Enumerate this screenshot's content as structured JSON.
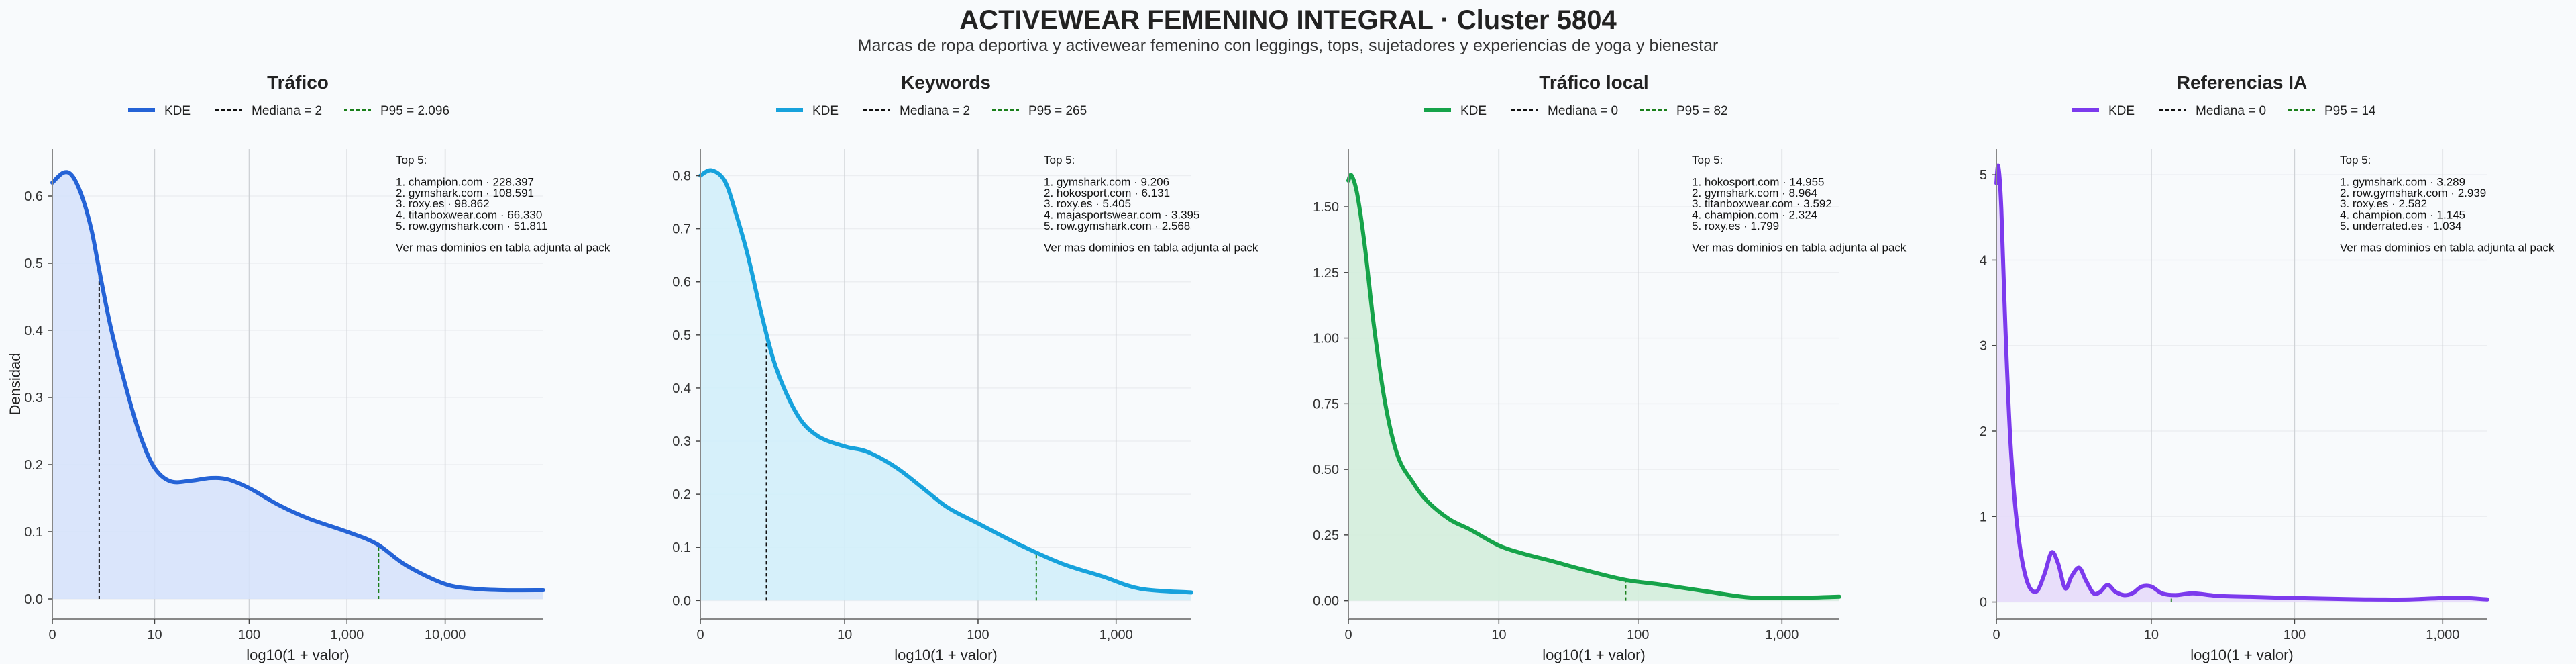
{
  "title": "ACTIVEWEAR FEMENINO INTEGRAL · Cluster 5804",
  "subtitle": "Marcas de ropa deportiva y activewear femenino con leggings, tops, sujetadores y experiencias de yoga y bienestar",
  "chart_data": [
    {
      "type": "area",
      "title": "Tráfico",
      "color": "#2563d6",
      "fill": "#d6e2fb",
      "xlabel": "log10(1 + valor)",
      "ylabel": "Densidad",
      "x_scale": "log1p",
      "xlim": [
        0,
        100000
      ],
      "ylim": [
        -0.03,
        0.67
      ],
      "xticks": [
        0,
        10,
        100,
        1000,
        10000
      ],
      "xtick_labels": [
        "0",
        "10",
        "100",
        "1,000",
        "10,000"
      ],
      "yticks": [
        0,
        0.1,
        0.2,
        0.3,
        0.4,
        0.5,
        0.6
      ],
      "ytick_labels": [
        "0.0",
        "0.1",
        "0.2",
        "0.3",
        "0.4",
        "0.5",
        "0.6"
      ],
      "legend": {
        "kde": "KDE",
        "median": "Mediana = 2",
        "p95": "P95 = 2.096"
      },
      "median": 2,
      "p95": 2096,
      "annotation": [
        "Top 5:",
        "",
        "1. champion.com · 228.397",
        "2. gymshark.com · 108.591",
        "3. roxy.es · 98.862",
        "4. titanboxwear.com · 66.330",
        "5. row.gymshark.com · 51.811",
        "",
        "Ver mas dominios en tabla adjunta al pack"
      ],
      "x": [
        0,
        0.3,
        0.6,
        1,
        1.5,
        2,
        3,
        5,
        7,
        10,
        15,
        25,
        40,
        60,
        100,
        200,
        400,
        1000,
        2000,
        4000,
        10000,
        20000,
        40000,
        100000
      ],
      "y": [
        0.62,
        0.635,
        0.63,
        0.6,
        0.55,
        0.49,
        0.4,
        0.3,
        0.24,
        0.195,
        0.175,
        0.176,
        0.18,
        0.178,
        0.165,
        0.14,
        0.12,
        0.1,
        0.082,
        0.05,
        0.022,
        0.015,
        0.013,
        0.013
      ]
    },
    {
      "type": "area",
      "title": "Keywords",
      "color": "#17a2dc",
      "fill": "#d2eefa",
      "xlabel": "log10(1 + valor)",
      "ylabel": "",
      "x_scale": "log1p",
      "xlim": [
        0,
        3500
      ],
      "ylim": [
        -0.035,
        0.85
      ],
      "xticks": [
        0,
        10,
        100,
        1000
      ],
      "xtick_labels": [
        "0",
        "10",
        "100",
        "1,000"
      ],
      "yticks": [
        0,
        0.1,
        0.2,
        0.3,
        0.4,
        0.5,
        0.6,
        0.7,
        0.8
      ],
      "ytick_labels": [
        "0.0",
        "0.1",
        "0.2",
        "0.3",
        "0.4",
        "0.5",
        "0.6",
        "0.7",
        "0.8"
      ],
      "legend": {
        "kde": "KDE",
        "median": "Mediana = 2",
        "p95": "P95 = 265"
      },
      "median": 2,
      "p95": 265,
      "annotation": [
        "Top 5:",
        "",
        "1. gymshark.com · 9.206",
        "2. hokosport.com · 6.131",
        "3. roxy.es · 5.405",
        "4. majasportswear.com · 3.395",
        "5. row.gymshark.com · 2.568",
        "",
        "Ver mas dominios en tabla adjunta al pack"
      ],
      "x": [
        0,
        0.2,
        0.5,
        0.8,
        1.2,
        1.7,
        2.5,
        4,
        6,
        10,
        15,
        25,
        40,
        60,
        100,
        200,
        400,
        800,
        1500,
        3500
      ],
      "y": [
        0.8,
        0.81,
        0.79,
        0.73,
        0.65,
        0.55,
        0.44,
        0.35,
        0.31,
        0.29,
        0.28,
        0.25,
        0.21,
        0.175,
        0.145,
        0.105,
        0.07,
        0.045,
        0.022,
        0.015
      ]
    },
    {
      "type": "area",
      "title": "Tráfico local",
      "color": "#16a34a",
      "fill": "#d3eddb",
      "xlabel": "log10(1 + valor)",
      "ylabel": "",
      "x_scale": "log1p",
      "xlim": [
        0,
        2500
      ],
      "ylim": [
        -0.07,
        1.72
      ],
      "xticks": [
        0,
        10,
        100,
        1000
      ],
      "xtick_labels": [
        "0",
        "10",
        "100",
        "1,000"
      ],
      "yticks": [
        0,
        0.25,
        0.5,
        0.75,
        1.0,
        1.25,
        1.5
      ],
      "ytick_labels": [
        "0.00",
        "0.25",
        "0.50",
        "0.75",
        "1.00",
        "1.25",
        "1.50"
      ],
      "legend": {
        "kde": "KDE",
        "median": "Mediana = 0",
        "p95": "P95 = 82"
      },
      "median": 0,
      "p95": 82,
      "annotation": [
        "Top 5:",
        "",
        "1. hokosport.com · 14.955",
        "2. gymshark.com · 8.964",
        "3. titanboxwear.com · 3.592",
        "4. champion.com · 2.324",
        "5. roxy.es · 1.799",
        "",
        "Ver mas dominios en tabla adjunta al pack"
      ],
      "x": [
        0,
        0.05,
        0.15,
        0.3,
        0.5,
        0.8,
        1.2,
        1.8,
        2.5,
        4,
        6,
        10,
        15,
        25,
        40,
        80,
        150,
        300,
        600,
        1200,
        2500
      ],
      "y": [
        1.6,
        1.62,
        1.55,
        1.35,
        1.05,
        0.75,
        0.55,
        0.45,
        0.38,
        0.31,
        0.27,
        0.21,
        0.18,
        0.15,
        0.12,
        0.08,
        0.06,
        0.035,
        0.012,
        0.01,
        0.015
      ]
    },
    {
      "type": "area",
      "title": "Referencias IA",
      "color": "#7c3aed",
      "fill": "#e6daf9",
      "xlabel": "log10(1 + valor)",
      "ylabel": "",
      "x_scale": "log1p",
      "xlim": [
        0,
        2000
      ],
      "ylim": [
        -0.2,
        5.3
      ],
      "xticks": [
        0,
        10,
        100,
        1000
      ],
      "xtick_labels": [
        "0",
        "10",
        "100",
        "1,000"
      ],
      "yticks": [
        0,
        1,
        2,
        3,
        4,
        5
      ],
      "ytick_labels": [
        "0",
        "1",
        "2",
        "3",
        "4",
        "5"
      ],
      "legend": {
        "kde": "KDE",
        "median": "Mediana = 0",
        "p95": "P95 = 14"
      },
      "median": 0,
      "p95": 14,
      "annotation": [
        "Top 5:",
        "",
        "1. gymshark.com · 3.289",
        "2. row.gymshark.com · 2.939",
        "3. roxy.es · 2.582",
        "4. champion.com · 1.145",
        "5. underrated.es · 1.034",
        "",
        "Ver mas dominios en tabla adjunta al pack"
      ],
      "x": [
        0,
        0.03,
        0.08,
        0.15,
        0.25,
        0.4,
        0.6,
        0.85,
        1.1,
        1.35,
        1.6,
        1.9,
        2.2,
        2.6,
        3.0,
        3.5,
        4.0,
        4.6,
        5.3,
        6.2,
        7.2,
        8.5,
        10,
        12,
        15,
        20,
        30,
        50,
        80,
        150,
        300,
        600,
        1200,
        2000
      ],
      "y": [
        4.9,
        5.1,
        4.6,
        3.2,
        1.8,
        0.8,
        0.25,
        0.12,
        0.32,
        0.58,
        0.45,
        0.16,
        0.3,
        0.4,
        0.25,
        0.1,
        0.12,
        0.2,
        0.12,
        0.08,
        0.1,
        0.18,
        0.18,
        0.1,
        0.08,
        0.1,
        0.07,
        0.06,
        0.05,
        0.04,
        0.03,
        0.03,
        0.05,
        0.03
      ]
    }
  ]
}
